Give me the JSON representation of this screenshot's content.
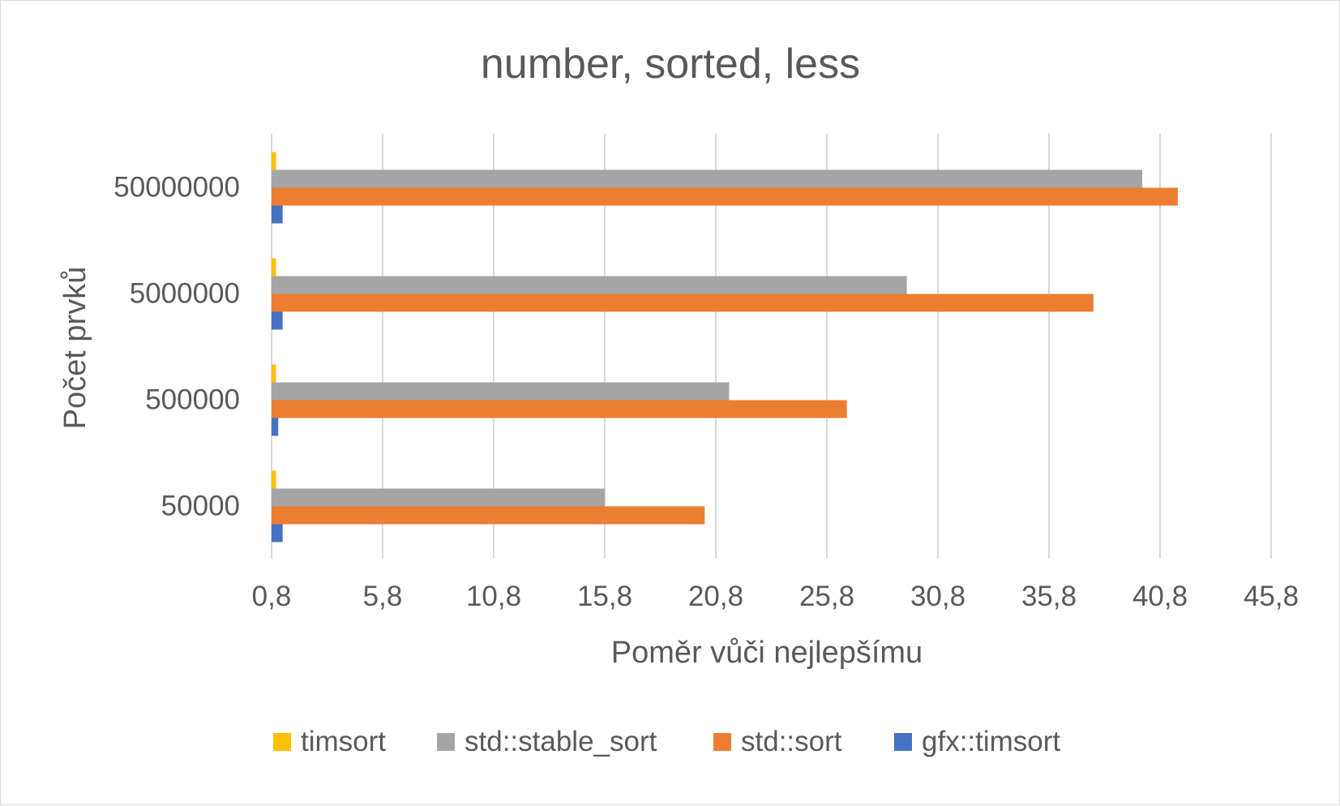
{
  "chart_data": {
    "type": "bar",
    "orientation": "horizontal",
    "title": "number, sorted, less",
    "xlabel": "Poměr vůči nejlepšímu",
    "ylabel": "Počet prvků",
    "categories": [
      "50000",
      "500000",
      "5000000",
      "50000000"
    ],
    "x_ticks": [
      "0,8",
      "5,8",
      "10,8",
      "15,8",
      "20,8",
      "25,8",
      "30,8",
      "35,8",
      "40,8",
      "45,8"
    ],
    "xlim": [
      0.8,
      45.8
    ],
    "grid": "vertical",
    "legend_position": "bottom",
    "series": [
      {
        "name": "timsort",
        "color": "#FFC000",
        "values": [
          1.0,
          1.0,
          1.0,
          1.0
        ]
      },
      {
        "name": "std::stable_sort",
        "color": "#A5A5A5",
        "values": [
          15.8,
          21.4,
          29.4,
          40.0
        ]
      },
      {
        "name": "std::sort",
        "color": "#ED7D31",
        "values": [
          20.3,
          26.7,
          37.8,
          41.6
        ]
      },
      {
        "name": "gfx::timsort",
        "color": "#4472C4",
        "values": [
          1.3,
          1.1,
          1.3,
          1.3
        ]
      }
    ]
  }
}
